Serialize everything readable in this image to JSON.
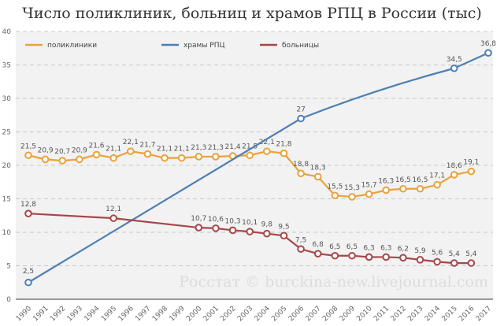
{
  "chart_data": {
    "type": "line",
    "title": "Число поликлиник, больниц и храмов РПЦ в России (тыс)",
    "watermark": "Росстат © burckina-new.livejournal.com",
    "xlabel": "",
    "ylabel": "",
    "ylim": [
      0,
      40
    ],
    "yticks": [
      "0",
      "5",
      "10",
      "15",
      "20",
      "25",
      "30",
      "35",
      "40"
    ],
    "x": [
      1990,
      1991,
      1992,
      1993,
      1994,
      1995,
      1996,
      1997,
      1998,
      1999,
      2000,
      2001,
      2002,
      2003,
      2004,
      2005,
      2006,
      2007,
      2008,
      2009,
      2010,
      2011,
      2012,
      2013,
      2014,
      2015,
      2016,
      2017
    ],
    "grid": true,
    "legend_position": "top",
    "series": [
      {
        "name": "поликлиники",
        "color": "#E9A23B",
        "x": [
          1990,
          1991,
          1992,
          1993,
          1994,
          1995,
          1996,
          1997,
          1998,
          1999,
          2000,
          2001,
          2002,
          2003,
          2004,
          2005,
          2006,
          2007,
          2008,
          2009,
          2010,
          2011,
          2012,
          2013,
          2014,
          2015,
          2016
        ],
        "values": [
          21.5,
          20.9,
          20.7,
          20.9,
          21.6,
          21.1,
          22.1,
          21.7,
          21.1,
          21.1,
          21.3,
          21.3,
          21.4,
          21.5,
          22.1,
          21.8,
          18.8,
          18.3,
          15.5,
          15.3,
          15.7,
          16.3,
          16.5,
          16.5,
          17.1,
          18.6,
          19.1
        ],
        "labels": [
          "21,5",
          "20,9",
          "20,7",
          "20,9",
          "21,6",
          "21,1",
          "22,1",
          "21,7",
          "21,1",
          "21,1",
          "21,3",
          "21,3",
          "21,4",
          "21,5",
          "22,1",
          "21,8",
          "18,8",
          "18,3",
          "15,5",
          "15,3",
          "15,7",
          "16,3",
          "16,5",
          "16,5",
          "17,1",
          "18,6",
          "19,1"
        ]
      },
      {
        "name": "храмы РПЦ",
        "color": "#4F7FB4",
        "x": [
          1990,
          2006,
          2015,
          2017
        ],
        "values": [
          2.5,
          27,
          34.5,
          36.8
        ],
        "labels": [
          "2,5",
          "27",
          "34,5",
          "36,8"
        ]
      },
      {
        "name": "больницы",
        "color": "#A8464A",
        "x": [
          1990,
          1995,
          2000,
          2001,
          2002,
          2003,
          2004,
          2005,
          2006,
          2007,
          2008,
          2009,
          2010,
          2011,
          2012,
          2013,
          2014,
          2015,
          2016
        ],
        "values": [
          12.8,
          12.1,
          10.7,
          10.6,
          10.3,
          10.1,
          9.8,
          9.5,
          7.5,
          6.8,
          6.5,
          6.5,
          6.3,
          6.3,
          6.2,
          5.9,
          5.6,
          5.4,
          5.4
        ],
        "labels": [
          "12,8",
          "12,1",
          "10,7",
          "10,6",
          "10,3",
          "10,1",
          "9,8",
          "9,5",
          "7,5",
          "6,8",
          "6,5",
          "6,5",
          "6,3",
          "6,3",
          "6,2",
          "5,9",
          "5,6",
          "5,4",
          "5,4"
        ]
      }
    ]
  }
}
